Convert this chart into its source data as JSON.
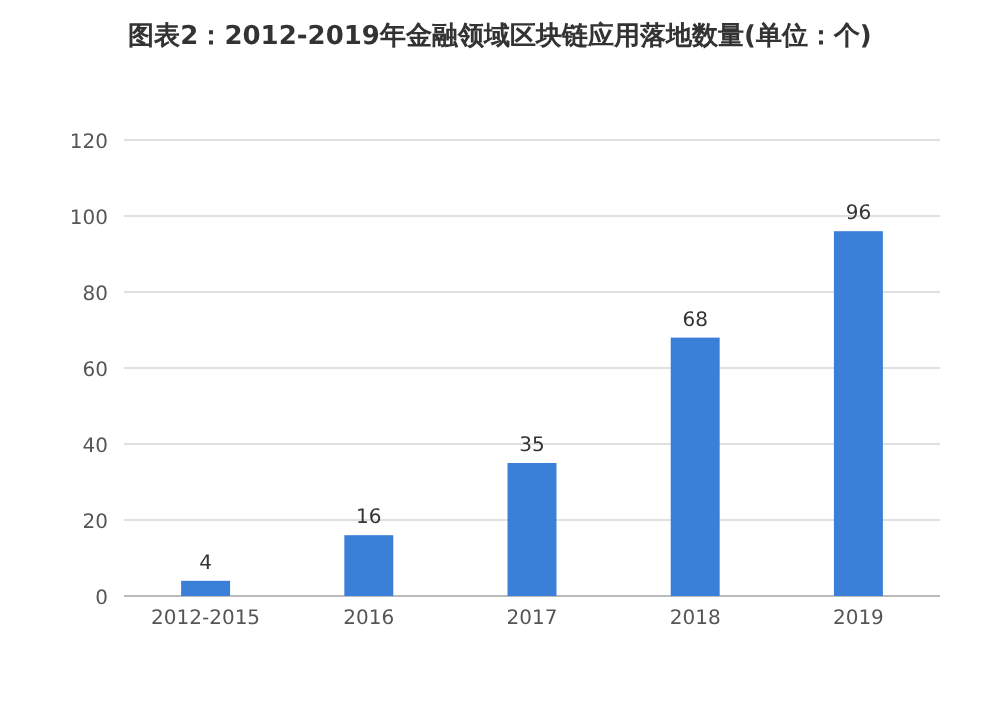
{
  "chart_data": {
    "type": "bar",
    "title": "图表2：2012-2019年金融领域区块链应用落地数量(单位：个)",
    "categories": [
      "2012-2015",
      "2016",
      "2017",
      "2018",
      "2019"
    ],
    "values": [
      4,
      16,
      35,
      68,
      96
    ],
    "color": "#3a80d9",
    "ylim": [
      0,
      120
    ],
    "yticks": [
      0,
      20,
      40,
      60,
      80,
      100,
      120
    ],
    "grid": "y",
    "data_labels": true
  }
}
